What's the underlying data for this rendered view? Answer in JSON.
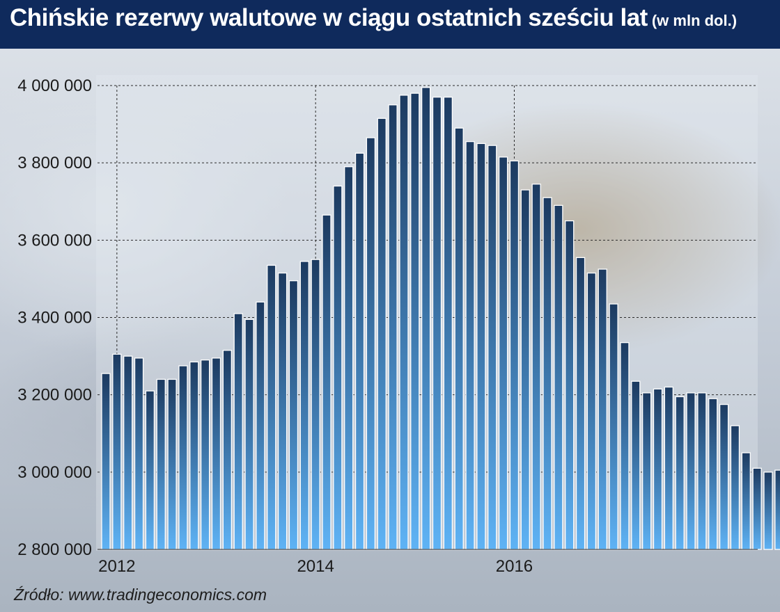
{
  "title": "Chińskie rezerwy walutowe w ciągu ostatnich sześciu lat",
  "title_unit": "(w mln dol.)",
  "source": "Źródło: www.tradingeconomics.com",
  "colors": {
    "header": "#0f2a5c",
    "bar_top": "#1c3a60",
    "bar_bottom": "#5fb3f5",
    "bar_edge": "#ffffff",
    "grid": "#2a2a2a"
  },
  "chart_data": {
    "type": "bar",
    "title": "Chińskie rezerwy walutowe w ciągu ostatnich sześciu lat",
    "xlabel": "",
    "ylabel": "",
    "ylim": [
      2800000,
      4000000
    ],
    "y_ticks": [
      2800000,
      3000000,
      3200000,
      3400000,
      3600000,
      3800000,
      4000000
    ],
    "y_tick_labels": [
      "2 800 000",
      "3 000 000",
      "3 200 000",
      "3 400 000",
      "3 600 000",
      "3 800 000",
      "4 000 000"
    ],
    "x_tick_labels": [
      "2012",
      "2014",
      "2016"
    ],
    "x_tick_bar_index": [
      1,
      19,
      37
    ],
    "grid": true,
    "legend": "none",
    "values": [
      3255000,
      3305000,
      3300000,
      3295000,
      3210000,
      3240000,
      3240000,
      3275000,
      3285000,
      3290000,
      3295000,
      3315000,
      3410000,
      3395000,
      3440000,
      3535000,
      3515000,
      3495000,
      3545000,
      3550000,
      3665000,
      3740000,
      3790000,
      3825000,
      3865000,
      3915000,
      3950000,
      3975000,
      3980000,
      3995000,
      3970000,
      3970000,
      3890000,
      3855000,
      3850000,
      3845000,
      3815000,
      3805000,
      3730000,
      3745000,
      3710000,
      3690000,
      3650000,
      3555000,
      3515000,
      3525000,
      3435000,
      3335000,
      3235000,
      3205000,
      3215000,
      3220000,
      3195000,
      3205000,
      3205000,
      3190000,
      3175000,
      3120000,
      3050000,
      3010000,
      3000000,
      3005000
    ]
  }
}
